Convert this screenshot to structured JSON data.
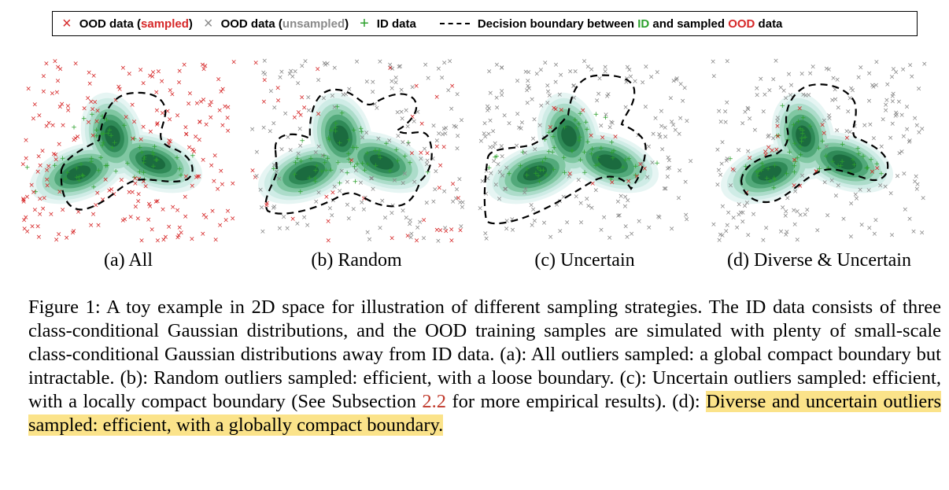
{
  "legend": {
    "ood_sampled_prefix": "OOD data (",
    "ood_sampled_word": "sampled",
    "ood_sampled_suffix": ")",
    "ood_unsampled_prefix": "OOD data (",
    "ood_unsampled_word": "unsampled",
    "ood_unsampled_suffix": ")",
    "id_label": "ID data",
    "boundary_prefix": "Decision boundary between ",
    "boundary_id": "ID",
    "boundary_mid": " and sampled ",
    "boundary_ood": "OOD",
    "boundary_suffix": " data",
    "colors": {
      "sampled": "#d62728",
      "unsampled": "#8a8a8a",
      "id": "#2ca02c"
    }
  },
  "panels": [
    {
      "caption": "(a) All"
    },
    {
      "caption": "(b) Random"
    },
    {
      "caption": "(c) Uncertain"
    },
    {
      "caption": "(d) Diverse & Uncertain"
    }
  ],
  "caption": {
    "part1": "Figure 1: A toy example in 2D space for illustration of different sampling strategies. The ID data consists of three class-conditional Gaussian distributions, and the OOD training samples are simulated with plenty of small-scale class-conditional Gaussian distributions away from ID data. (a): All outliers sampled: a global compact boundary but intractable. (b): Random outliers sampled: efficient, with a loose boundary. (c): Uncertain outliers sampled: efficient, with a locally compact boundary (See Subsection ",
    "ref": "2.2",
    "part2": " for more empirical results). (d): ",
    "highlight": "Diverse and uncertain outliers sampled: efficient, with a globally compact boundary."
  }
}
